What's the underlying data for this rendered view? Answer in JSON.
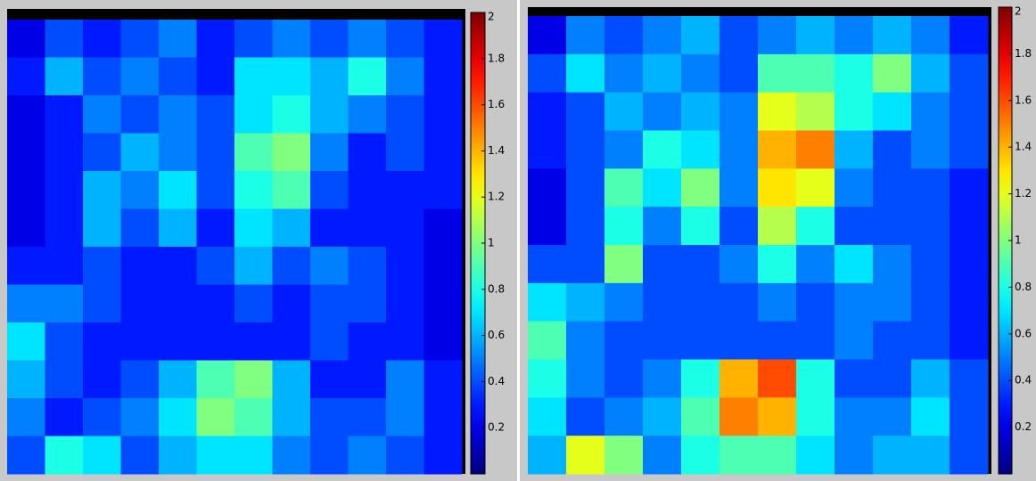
{
  "chart_data": [
    {
      "type": "heatmap",
      "colormap": "jet",
      "zlim": [
        0,
        2
      ],
      "zticks": [
        0.2,
        0.4,
        0.6,
        0.8,
        1,
        1.2,
        1.4,
        1.6,
        1.8,
        2
      ],
      "values": [
        [
          0.2,
          0.4,
          0.3,
          0.4,
          0.5,
          0.3,
          0.4,
          0.5,
          0.4,
          0.5,
          0.4,
          0.3
        ],
        [
          0.3,
          0.6,
          0.4,
          0.5,
          0.4,
          0.3,
          0.7,
          0.7,
          0.6,
          0.8,
          0.5,
          0.3
        ],
        [
          0.2,
          0.3,
          0.5,
          0.4,
          0.5,
          0.4,
          0.7,
          0.8,
          0.6,
          0.5,
          0.4,
          0.3
        ],
        [
          0.2,
          0.3,
          0.4,
          0.6,
          0.5,
          0.4,
          0.9,
          1.0,
          0.5,
          0.3,
          0.4,
          0.3
        ],
        [
          0.2,
          0.3,
          0.6,
          0.5,
          0.7,
          0.4,
          0.8,
          0.9,
          0.4,
          0.3,
          0.3,
          0.3
        ],
        [
          0.2,
          0.3,
          0.6,
          0.4,
          0.6,
          0.3,
          0.7,
          0.6,
          0.3,
          0.3,
          0.3,
          0.2
        ],
        [
          0.3,
          0.3,
          0.4,
          0.3,
          0.3,
          0.4,
          0.6,
          0.4,
          0.5,
          0.4,
          0.3,
          0.2
        ],
        [
          0.5,
          0.5,
          0.4,
          0.3,
          0.3,
          0.3,
          0.4,
          0.3,
          0.4,
          0.4,
          0.3,
          0.2
        ],
        [
          0.7,
          0.4,
          0.3,
          0.3,
          0.3,
          0.3,
          0.3,
          0.3,
          0.4,
          0.3,
          0.3,
          0.2
        ],
        [
          0.6,
          0.4,
          0.3,
          0.4,
          0.6,
          0.9,
          1.0,
          0.6,
          0.3,
          0.3,
          0.5,
          0.3
        ],
        [
          0.5,
          0.3,
          0.4,
          0.5,
          0.7,
          1.0,
          0.9,
          0.6,
          0.4,
          0.4,
          0.5,
          0.3
        ],
        [
          0.4,
          0.8,
          0.7,
          0.4,
          0.6,
          0.7,
          0.7,
          0.5,
          0.4,
          0.5,
          0.4,
          0.3
        ]
      ]
    },
    {
      "type": "heatmap",
      "colormap": "jet",
      "zlim": [
        0,
        2
      ],
      "zticks": [
        0.2,
        0.4,
        0.6,
        0.8,
        1,
        1.2,
        1.4,
        1.6,
        1.8,
        2
      ],
      "values": [
        [
          0.2,
          0.5,
          0.4,
          0.5,
          0.6,
          0.4,
          0.5,
          0.6,
          0.5,
          0.6,
          0.5,
          0.3
        ],
        [
          0.4,
          0.7,
          0.5,
          0.6,
          0.5,
          0.4,
          0.9,
          0.9,
          0.8,
          1.0,
          0.6,
          0.4
        ],
        [
          0.3,
          0.4,
          0.6,
          0.5,
          0.6,
          0.5,
          1.2,
          1.1,
          0.8,
          0.7,
          0.5,
          0.4
        ],
        [
          0.3,
          0.4,
          0.5,
          0.8,
          0.7,
          0.5,
          1.4,
          1.5,
          0.6,
          0.4,
          0.5,
          0.4
        ],
        [
          0.2,
          0.4,
          0.9,
          0.7,
          1.0,
          0.5,
          1.3,
          1.2,
          0.5,
          0.4,
          0.4,
          0.3
        ],
        [
          0.2,
          0.4,
          0.8,
          0.5,
          0.8,
          0.4,
          1.1,
          0.8,
          0.4,
          0.4,
          0.4,
          0.3
        ],
        [
          0.4,
          0.4,
          1.0,
          0.4,
          0.4,
          0.5,
          0.8,
          0.5,
          0.7,
          0.5,
          0.4,
          0.3
        ],
        [
          0.7,
          0.6,
          0.5,
          0.4,
          0.4,
          0.4,
          0.5,
          0.4,
          0.5,
          0.5,
          0.4,
          0.3
        ],
        [
          0.9,
          0.5,
          0.4,
          0.4,
          0.4,
          0.4,
          0.4,
          0.4,
          0.5,
          0.4,
          0.4,
          0.3
        ],
        [
          0.8,
          0.5,
          0.4,
          0.5,
          0.8,
          1.4,
          1.6,
          0.8,
          0.4,
          0.4,
          0.6,
          0.4
        ],
        [
          0.7,
          0.4,
          0.5,
          0.6,
          0.9,
          1.5,
          1.4,
          0.8,
          0.5,
          0.5,
          0.7,
          0.4
        ],
        [
          0.6,
          1.2,
          1.0,
          0.5,
          0.8,
          0.9,
          0.9,
          0.7,
          0.5,
          0.6,
          0.6,
          0.4
        ]
      ]
    }
  ]
}
